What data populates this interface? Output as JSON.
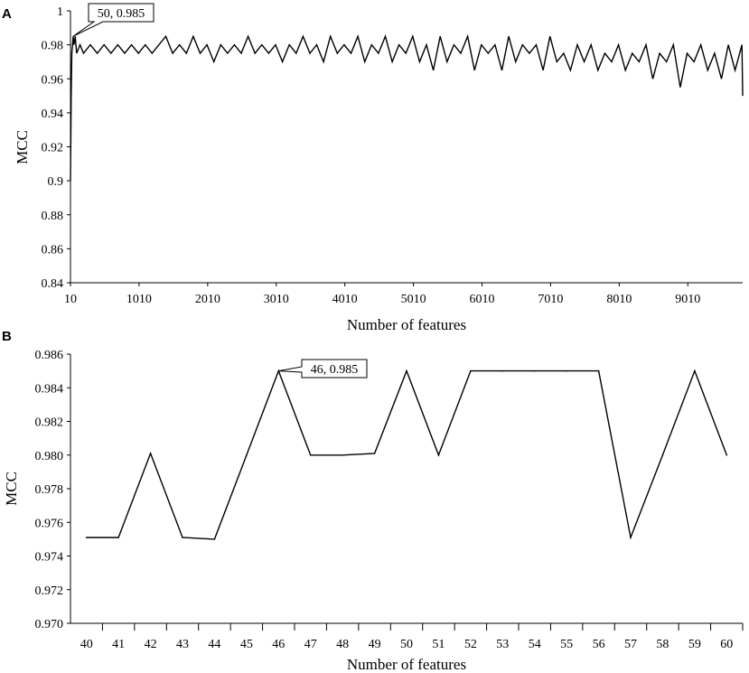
{
  "chart_data": [
    {
      "type": "line",
      "panel_label": "A",
      "xlabel": "Number of features",
      "ylabel": "MCC",
      "xlim": [
        10,
        9810
      ],
      "ylim": [
        0.84,
        1.0
      ],
      "x_tick_labels": [
        "10",
        "1010",
        "2010",
        "3010",
        "4010",
        "5010",
        "6010",
        "7010",
        "8010",
        "9010"
      ],
      "y_tick_labels": [
        "0.84",
        "0.86",
        "0.88",
        "0.9",
        "0.92",
        "0.94",
        "0.96",
        "0.98",
        "1"
      ],
      "x_ticks": [
        10,
        1010,
        2010,
        3010,
        4010,
        5010,
        6010,
        7010,
        8010,
        9010
      ],
      "y_ticks": [
        0.84,
        0.86,
        0.88,
        0.9,
        0.92,
        0.94,
        0.96,
        0.98,
        1.0
      ],
      "grid": false,
      "legend": "none",
      "series": [
        {
          "x": [
            10,
            20,
            30,
            40,
            50,
            60,
            80,
            100,
            150,
            200,
            300,
            400,
            500,
            600,
            700,
            800,
            900,
            1000,
            1100,
            1200,
            1300,
            1400,
            1500,
            1600,
            1700,
            1800,
            1900,
            2000,
            2100,
            2200,
            2300,
            2400,
            2500,
            2600,
            2700,
            2800,
            2900,
            3000,
            3100,
            3200,
            3300,
            3400,
            3500,
            3600,
            3700,
            3800,
            3900,
            4000,
            4100,
            4200,
            4300,
            4400,
            4500,
            4600,
            4700,
            4800,
            4900,
            5000,
            5100,
            5200,
            5300,
            5400,
            5500,
            5600,
            5700,
            5800,
            5900,
            6000,
            6100,
            6200,
            6300,
            6400,
            6500,
            6600,
            6700,
            6800,
            6900,
            7000,
            7100,
            7200,
            7300,
            7400,
            7500,
            7600,
            7700,
            7800,
            7900,
            8000,
            8100,
            8200,
            8300,
            8400,
            8500,
            8600,
            8700,
            8800,
            8900,
            9000,
            9100,
            9200,
            9300,
            9400,
            9500,
            9600,
            9700,
            9800,
            9810
          ],
          "y": [
            0.9,
            0.95,
            0.975,
            0.98,
            0.985,
            0.98,
            0.985,
            0.975,
            0.98,
            0.975,
            0.98,
            0.975,
            0.98,
            0.975,
            0.98,
            0.975,
            0.98,
            0.975,
            0.98,
            0.975,
            0.98,
            0.985,
            0.975,
            0.98,
            0.975,
            0.985,
            0.975,
            0.98,
            0.97,
            0.98,
            0.975,
            0.98,
            0.975,
            0.985,
            0.975,
            0.98,
            0.975,
            0.98,
            0.97,
            0.98,
            0.975,
            0.985,
            0.975,
            0.98,
            0.97,
            0.985,
            0.975,
            0.98,
            0.975,
            0.985,
            0.97,
            0.98,
            0.975,
            0.985,
            0.97,
            0.98,
            0.975,
            0.985,
            0.97,
            0.98,
            0.965,
            0.985,
            0.97,
            0.98,
            0.975,
            0.985,
            0.965,
            0.98,
            0.975,
            0.98,
            0.965,
            0.985,
            0.97,
            0.98,
            0.975,
            0.98,
            0.965,
            0.985,
            0.97,
            0.975,
            0.965,
            0.98,
            0.97,
            0.98,
            0.965,
            0.975,
            0.97,
            0.98,
            0.965,
            0.975,
            0.97,
            0.98,
            0.96,
            0.975,
            0.97,
            0.98,
            0.955,
            0.975,
            0.97,
            0.98,
            0.965,
            0.975,
            0.96,
            0.98,
            0.965,
            0.98,
            0.95
          ]
        }
      ],
      "annotation": {
        "text": "50, 0.985",
        "x": 50,
        "y": 0.985
      }
    },
    {
      "type": "line",
      "panel_label": "B",
      "xlabel": "Number of features",
      "ylabel": "MCC",
      "xlim": [
        39.5,
        60.5
      ],
      "ylim": [
        0.97,
        0.986
      ],
      "categories": [
        "40",
        "41",
        "42",
        "43",
        "44",
        "45",
        "46",
        "47",
        "48",
        "49",
        "50",
        "51",
        "52",
        "53",
        "54",
        "55",
        "56",
        "57",
        "58",
        "59",
        "60"
      ],
      "y_tick_labels": [
        "0.970",
        "0.972",
        "0.974",
        "0.976",
        "0.978",
        "0.980",
        "0.982",
        "0.984",
        "0.986"
      ],
      "y_ticks": [
        0.97,
        0.972,
        0.974,
        0.976,
        0.978,
        0.98,
        0.982,
        0.984,
        0.986
      ],
      "grid": false,
      "legend": "none",
      "series": [
        {
          "x": [
            40,
            41,
            42,
            43,
            44,
            45,
            46,
            47,
            48,
            49,
            50,
            51,
            52,
            53,
            54,
            55,
            56,
            57,
            58,
            59,
            60
          ],
          "y": [
            0.9751,
            0.9751,
            0.9801,
            0.9751,
            0.975,
            0.98,
            0.985,
            0.98,
            0.98,
            0.9801,
            0.985,
            0.98,
            0.985,
            0.985,
            0.985,
            0.985,
            0.985,
            0.9751,
            0.98,
            0.985,
            0.98
          ]
        }
      ],
      "annotation": {
        "text": "46, 0.985",
        "x": 46,
        "y": 0.985
      }
    }
  ]
}
